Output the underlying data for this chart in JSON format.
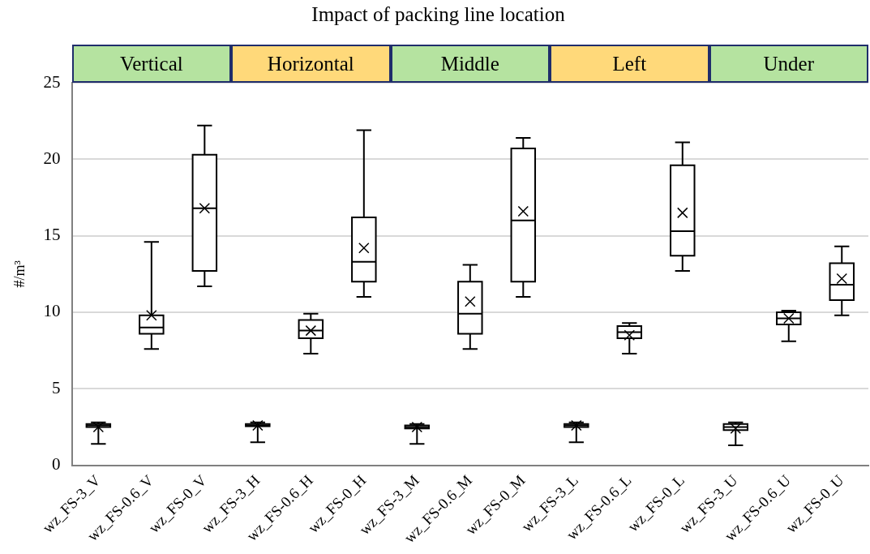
{
  "chart_data": {
    "type": "box",
    "title": "Impact of packing line location",
    "ylabel": "#/m³",
    "categories": [
      "wz_FS-3_V",
      "wz_FS-0.6_V",
      "wz_FS-0_V",
      "wz_FS-3_H",
      "wz_FS-0.6_H",
      "wz_FS-0_H",
      "wz_FS-3_M",
      "wz_FS-0.6_M",
      "wz_FS-0_M",
      "wz_FS-3_L",
      "wz_FS-0.6_L",
      "wz_FS-0_L",
      "wz_FS-3_U",
      "wz_FS-0.6_U",
      "wz_FS-0_U"
    ],
    "boxes": [
      {
        "low": 1.4,
        "q1": 2.5,
        "median": 2.6,
        "q3": 2.7,
        "high": 2.8,
        "mean": 2.5
      },
      {
        "low": 7.6,
        "q1": 8.6,
        "median": 9.0,
        "q3": 9.8,
        "high": 14.6,
        "mean": 9.8
      },
      {
        "low": 11.7,
        "q1": 12.7,
        "median": 16.8,
        "q3": 20.3,
        "high": 22.2,
        "mean": 16.8
      },
      {
        "low": 1.5,
        "q1": 2.55,
        "median": 2.6,
        "q3": 2.7,
        "high": 2.8,
        "mean": 2.6
      },
      {
        "low": 7.3,
        "q1": 8.3,
        "median": 8.8,
        "q3": 9.5,
        "high": 9.9,
        "mean": 8.8
      },
      {
        "low": 11.0,
        "q1": 12.0,
        "median": 13.3,
        "q3": 16.2,
        "high": 21.9,
        "mean": 14.2
      },
      {
        "low": 1.4,
        "q1": 2.4,
        "median": 2.5,
        "q3": 2.6,
        "high": 2.7,
        "mean": 2.5
      },
      {
        "low": 7.6,
        "q1": 8.6,
        "median": 9.9,
        "q3": 12.0,
        "high": 13.1,
        "mean": 10.7
      },
      {
        "low": 11.0,
        "q1": 12.0,
        "median": 16.0,
        "q3": 20.7,
        "high": 21.4,
        "mean": 16.6
      },
      {
        "low": 1.5,
        "q1": 2.5,
        "median": 2.6,
        "q3": 2.7,
        "high": 2.8,
        "mean": 2.6
      },
      {
        "low": 7.3,
        "q1": 8.3,
        "median": 8.7,
        "q3": 9.1,
        "high": 9.3,
        "mean": 8.5
      },
      {
        "low": 12.7,
        "q1": 13.7,
        "median": 15.3,
        "q3": 19.6,
        "high": 21.1,
        "mean": 16.5
      },
      {
        "low": 1.3,
        "q1": 2.3,
        "median": 2.5,
        "q3": 2.7,
        "high": 2.8,
        "mean": 2.4
      },
      {
        "low": 8.1,
        "q1": 9.2,
        "median": 9.6,
        "q3": 10.0,
        "high": 10.1,
        "mean": 9.6
      },
      {
        "low": 9.8,
        "q1": 10.8,
        "median": 11.8,
        "q3": 13.2,
        "high": 14.3,
        "mean": 12.2
      }
    ],
    "ylim": [
      0,
      25
    ],
    "yticks": [
      0,
      5,
      10,
      15,
      20,
      25
    ],
    "grid": "y",
    "legend": false,
    "annotations": [
      "Vertical",
      "Horizontal",
      "Middle",
      "Left",
      "Under"
    ]
  }
}
